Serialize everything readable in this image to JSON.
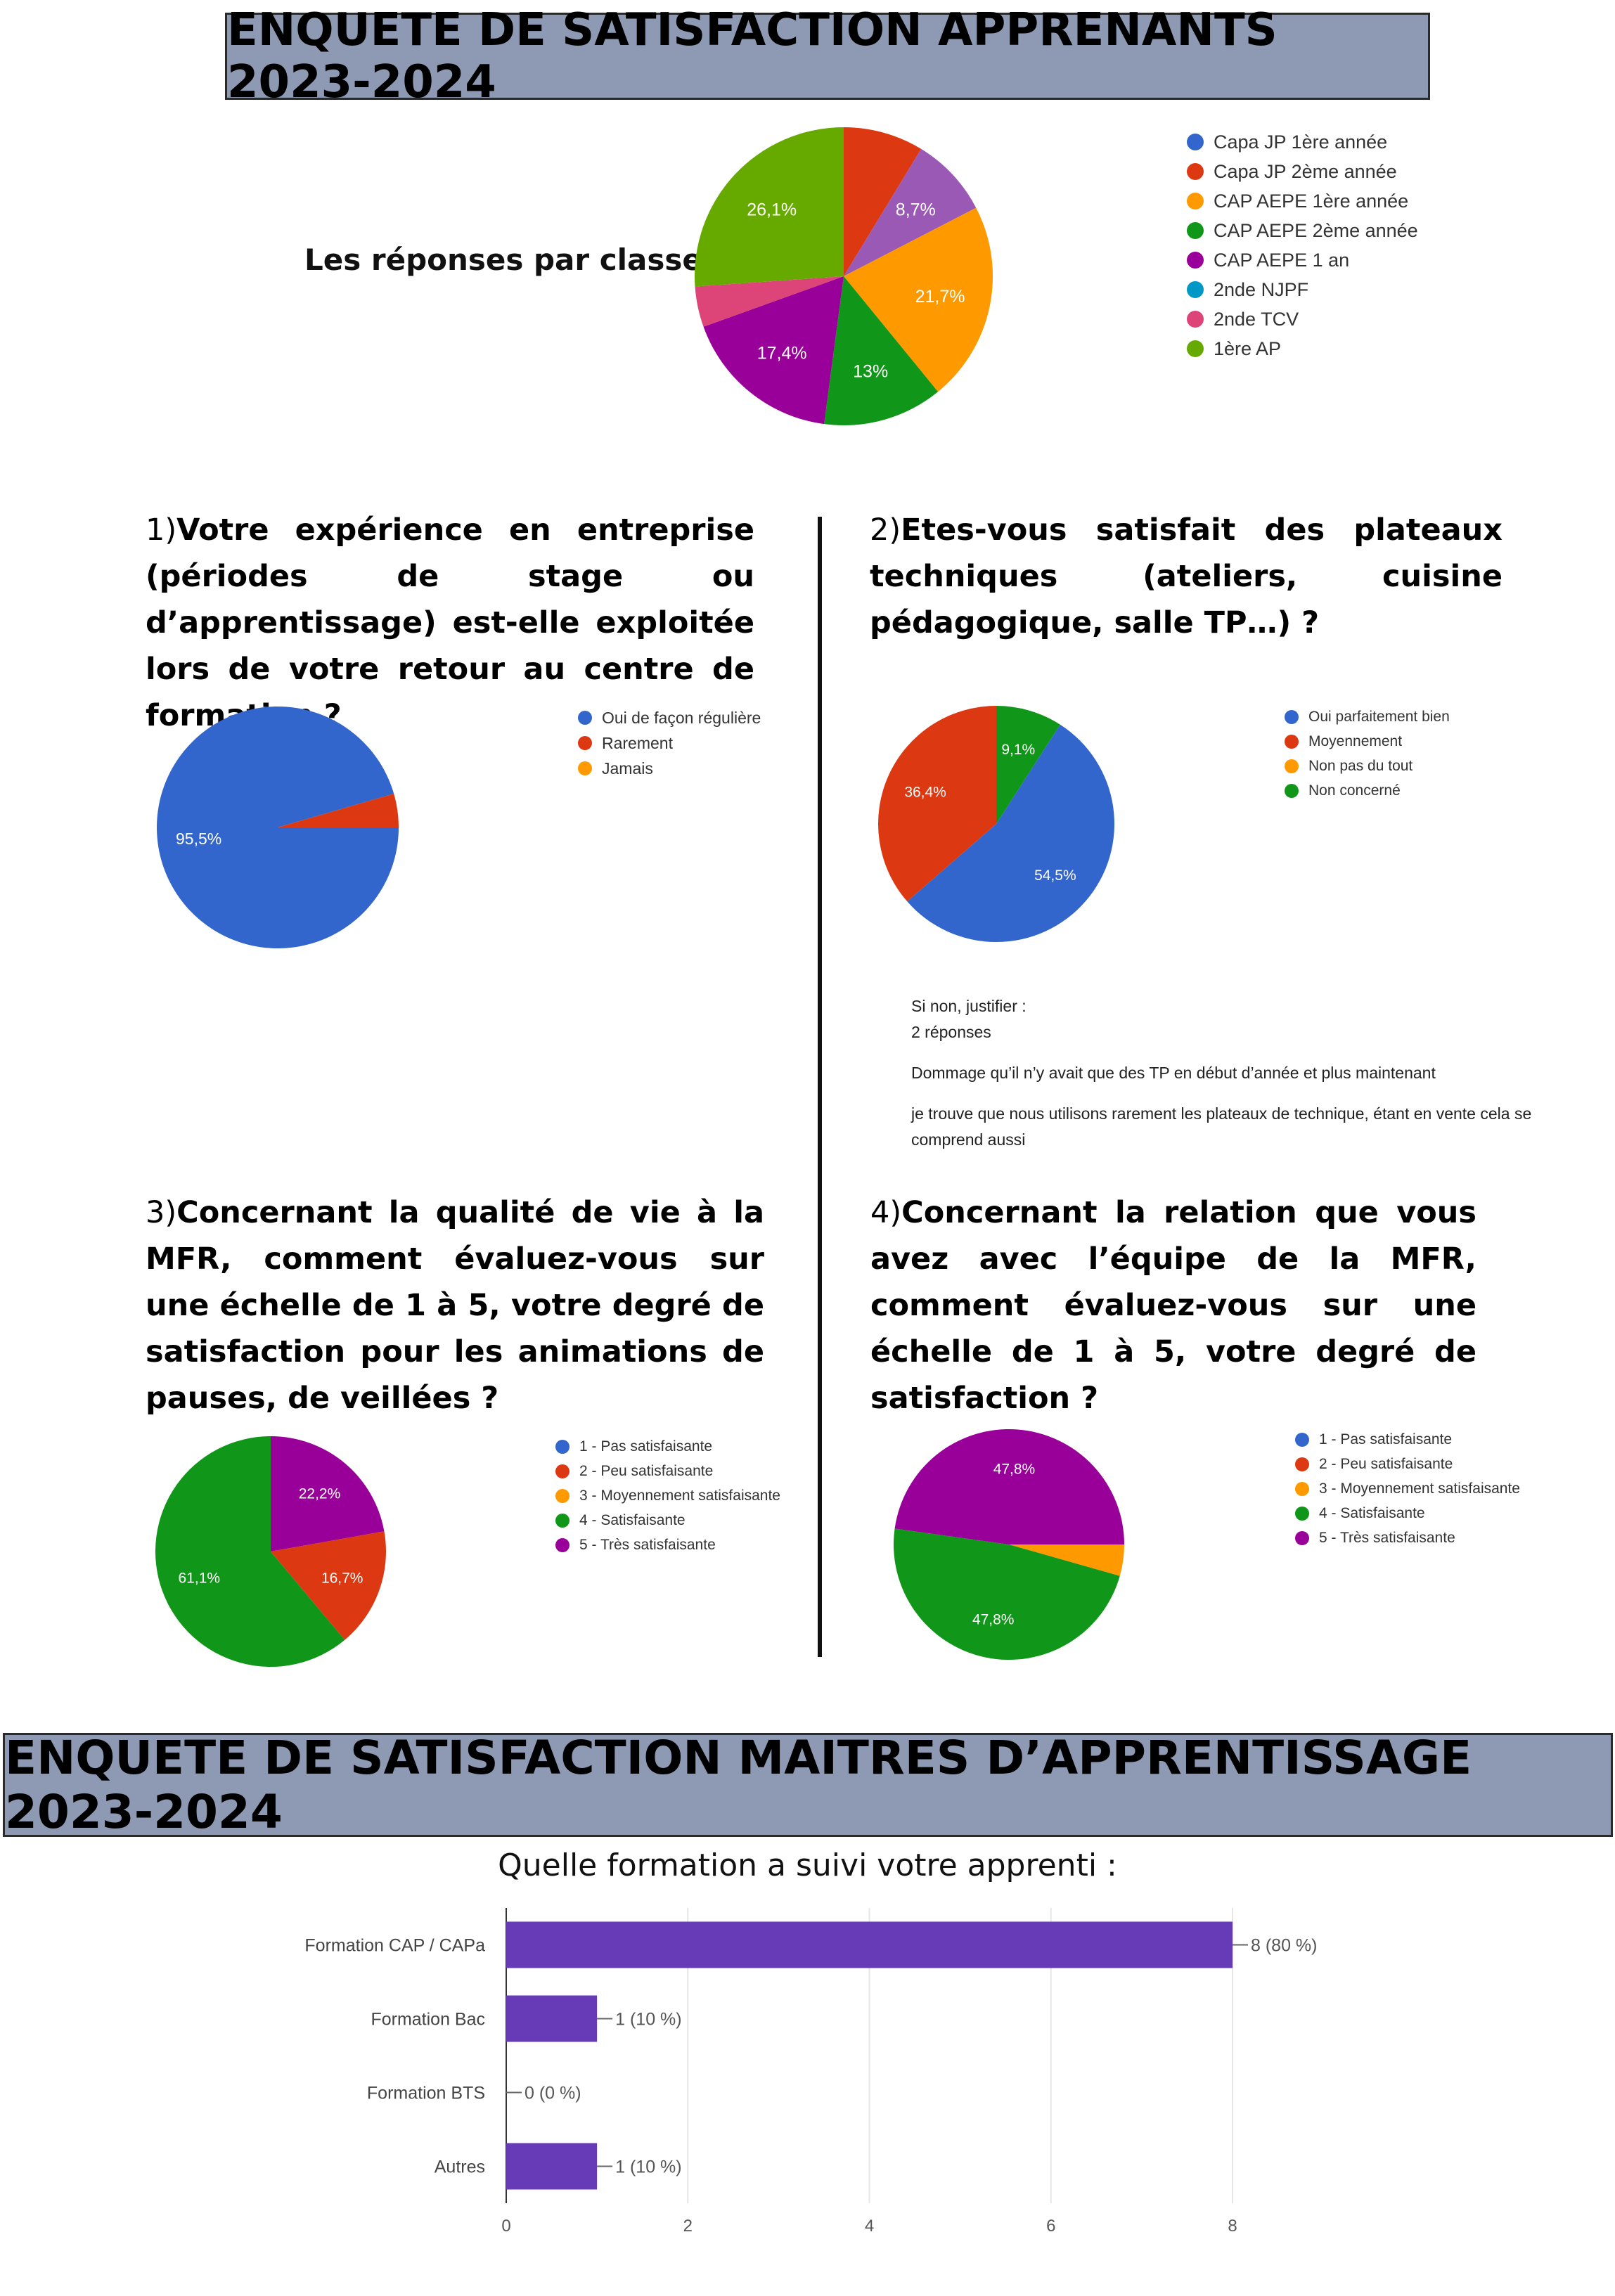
{
  "banner_top": "ENQUETE DE SATISFACTION APPRENANTS 2023-2024",
  "banner_bottom": "ENQUETE DE SATISFACTION MAITRES D’APPRENTISSAGE 2023-2024",
  "classes": {
    "label": "Les réponses par classe",
    "legend": [
      {
        "label": "Capa JP 1ère année",
        "color": "#3366cc"
      },
      {
        "label": "Capa JP 2ème année",
        "color": "#dc3912"
      },
      {
        "label": "CAP AEPE 1ère année",
        "color": "#ff9900"
      },
      {
        "label": "CAP AEPE 2ème année",
        "color": "#109618"
      },
      {
        "label": "CAP AEPE 1 an",
        "color": "#990099"
      },
      {
        "label": "2nde NJPF",
        "color": "#0099c6"
      },
      {
        "label": "2nde TCV",
        "color": "#dd4477"
      },
      {
        "label": "1ère AP",
        "color": "#66aa00"
      }
    ]
  },
  "q1": {
    "num": "1)",
    "text": "Votre expérience en entreprise (périodes de stage ou d’apprentissage) est-elle exploitée lors de votre retour au centre de formation ?",
    "legend": [
      {
        "label": "Oui de façon régulière",
        "color": "#3366cc"
      },
      {
        "label": "Rarement",
        "color": "#dc3912"
      },
      {
        "label": "Jamais",
        "color": "#ff9900"
      }
    ]
  },
  "q2": {
    "num": "2)",
    "text": "Etes-vous satisfait des plateaux techniques (ateliers, cuisine pédagogique, salle TP…) ?",
    "legend": [
      {
        "label": "Oui parfaitement bien",
        "color": "#3366cc"
      },
      {
        "label": "Moyennement",
        "color": "#dc3912"
      },
      {
        "label": "Non pas du tout",
        "color": "#ff9900"
      },
      {
        "label": "Non concerné",
        "color": "#109618"
      }
    ],
    "justify": {
      "title": "Si non, justifier :",
      "count": "2 réponses",
      "answer1": "Dommage qu’il n’y avait que des TP en début d’année et plus maintenant",
      "answer2": "je trouve que nous utilisons rarement les plateaux de technique, étant en vente cela se comprend aussi"
    }
  },
  "q3": {
    "num": "3)",
    "text": "Concernant la qualité de vie à la MFR, comment évaluez-vous sur une échelle de 1 à 5, votre degré de satisfaction pour les animations de pauses, de veillées ?",
    "legend": [
      {
        "label": "1 - Pas satisfaisante",
        "color": "#3366cc"
      },
      {
        "label": "2 - Peu satisfaisante",
        "color": "#dc3912"
      },
      {
        "label": "3 - Moyennement satisfaisante",
        "color": "#ff9900"
      },
      {
        "label": "4 - Satisfaisante",
        "color": "#109618"
      },
      {
        "label": "5 - Très satisfaisante",
        "color": "#990099"
      }
    ]
  },
  "q4": {
    "num": "4)",
    "text": "Concernant la relation que vous avez avec l’équipe de la MFR, comment évaluez-vous sur une échelle de 1 à 5, votre degré de satisfaction ?",
    "legend": [
      {
        "label": "1 - Pas satisfaisante",
        "color": "#3366cc"
      },
      {
        "label": "2 - Peu satisfaisante",
        "color": "#dc3912"
      },
      {
        "label": "3 - Moyennement satisfaisante",
        "color": "#ff9900"
      },
      {
        "label": "4 - Satisfaisante",
        "color": "#109618"
      },
      {
        "label": "5 - Très satisfaisante",
        "color": "#990099"
      }
    ]
  },
  "bar_title": "Quelle formation a suivi votre apprenti :",
  "chart_data": [
    {
      "type": "pie",
      "categories": [
        "Capa JP 1ère année",
        "Capa JP 2ème année",
        "CAP AEPE 1ère année",
        "CAP AEPE 2ème année",
        "CAP AEPE 1 an",
        "2nde NJPF",
        "2nde TCV",
        "1ère AP"
      ],
      "slices": [
        {
          "value": 8.7,
          "color": "#dc3912",
          "label": ""
        },
        {
          "value": 8.7,
          "color": "#9b59b6",
          "label": "8,7%"
        },
        {
          "value": 21.7,
          "color": "#ff9900",
          "label": "21,7%"
        },
        {
          "value": 13.0,
          "color": "#109618",
          "label": "13%"
        },
        {
          "value": 17.4,
          "color": "#990099",
          "label": "17,4%"
        },
        {
          "value": 4.4,
          "color": "#dd4477",
          "label": ""
        },
        {
          "value": 26.1,
          "color": "#66aa00",
          "label": "26,1%"
        }
      ]
    },
    {
      "type": "pie",
      "categories": [
        "Oui de façon régulière",
        "Rarement",
        "Jamais"
      ],
      "slices": [
        {
          "value": 95.5,
          "color": "#3366cc",
          "label": "95,5%"
        },
        {
          "value": 4.5,
          "color": "#dc3912",
          "label": ""
        }
      ]
    },
    {
      "type": "pie",
      "categories": [
        "Oui parfaitement bien",
        "Moyennement",
        "Non pas du tout",
        "Non concerné"
      ],
      "slices": [
        {
          "value": 9.1,
          "color": "#109618",
          "label": "9,1%"
        },
        {
          "value": 54.5,
          "color": "#3366cc",
          "label": "54,5%"
        },
        {
          "value": 36.4,
          "color": "#dc3912",
          "label": "36,4%"
        }
      ]
    },
    {
      "type": "pie",
      "categories": [
        "1 - Pas satisfaisante",
        "2 - Peu satisfaisante",
        "3 - Moyennement satisfaisante",
        "4 - Satisfaisante",
        "5 - Très satisfaisante"
      ],
      "slices": [
        {
          "value": 22.2,
          "color": "#990099",
          "label": "22,2%"
        },
        {
          "value": 16.7,
          "color": "#dc3912",
          "label": "16,7%"
        },
        {
          "value": 61.1,
          "color": "#109618",
          "label": "61,1%"
        }
      ]
    },
    {
      "type": "pie",
      "categories": [
        "1 - Pas satisfaisante",
        "2 - Peu satisfaisante",
        "3 - Moyennement satisfaisante",
        "4 - Satisfaisante",
        "5 - Très satisfaisante"
      ],
      "slices": [
        {
          "value": 4.4,
          "color": "#ff9900",
          "label": ""
        },
        {
          "value": 47.8,
          "color": "#109618",
          "label": "47,8%"
        },
        {
          "value": 47.8,
          "color": "#990099",
          "label": "47,8%"
        }
      ]
    },
    {
      "type": "bar",
      "orientation": "horizontal",
      "title": "Quelle formation a suivi votre apprenti :",
      "categories": [
        "Formation CAP / CAPa",
        "Formation Bac",
        "Formation BTS",
        "Autres"
      ],
      "values": [
        8,
        1,
        0,
        1
      ],
      "value_labels": [
        "8 (80 %)",
        "1 (10 %)",
        "0 (0 %)",
        "1 (10 %)"
      ],
      "xticks": [
        "0",
        "2",
        "4",
        "6",
        "8"
      ],
      "xlim": [
        0,
        8
      ],
      "color": "#673ab7",
      "grid": true
    }
  ]
}
